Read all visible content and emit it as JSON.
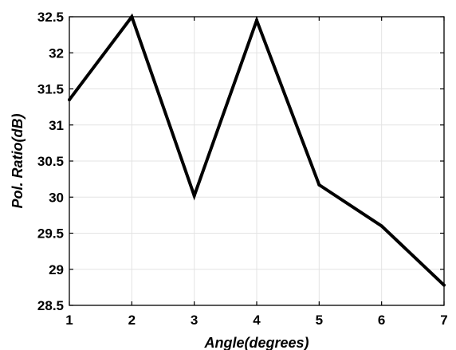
{
  "chart_data": {
    "type": "line",
    "title": "",
    "xlabel": "Angle(degrees)",
    "ylabel": "Pol. Ratio(dB)",
    "xlim": [
      1,
      7
    ],
    "ylim": [
      28.5,
      32.5
    ],
    "x_ticks": [
      "1",
      "2",
      "3",
      "4",
      "5",
      "6",
      "7"
    ],
    "y_ticks": [
      "28.5",
      "29",
      "29.5",
      "30",
      "30.5",
      "31",
      "31.5",
      "32",
      "32.5"
    ],
    "grid": true,
    "legend": "none",
    "series": [
      {
        "x": [
          1,
          2,
          3,
          4,
          5,
          6,
          7
        ],
        "values": [
          31.35,
          32.5,
          30.02,
          32.45,
          30.17,
          29.6,
          28.78
        ],
        "color": "#000000"
      }
    ]
  }
}
